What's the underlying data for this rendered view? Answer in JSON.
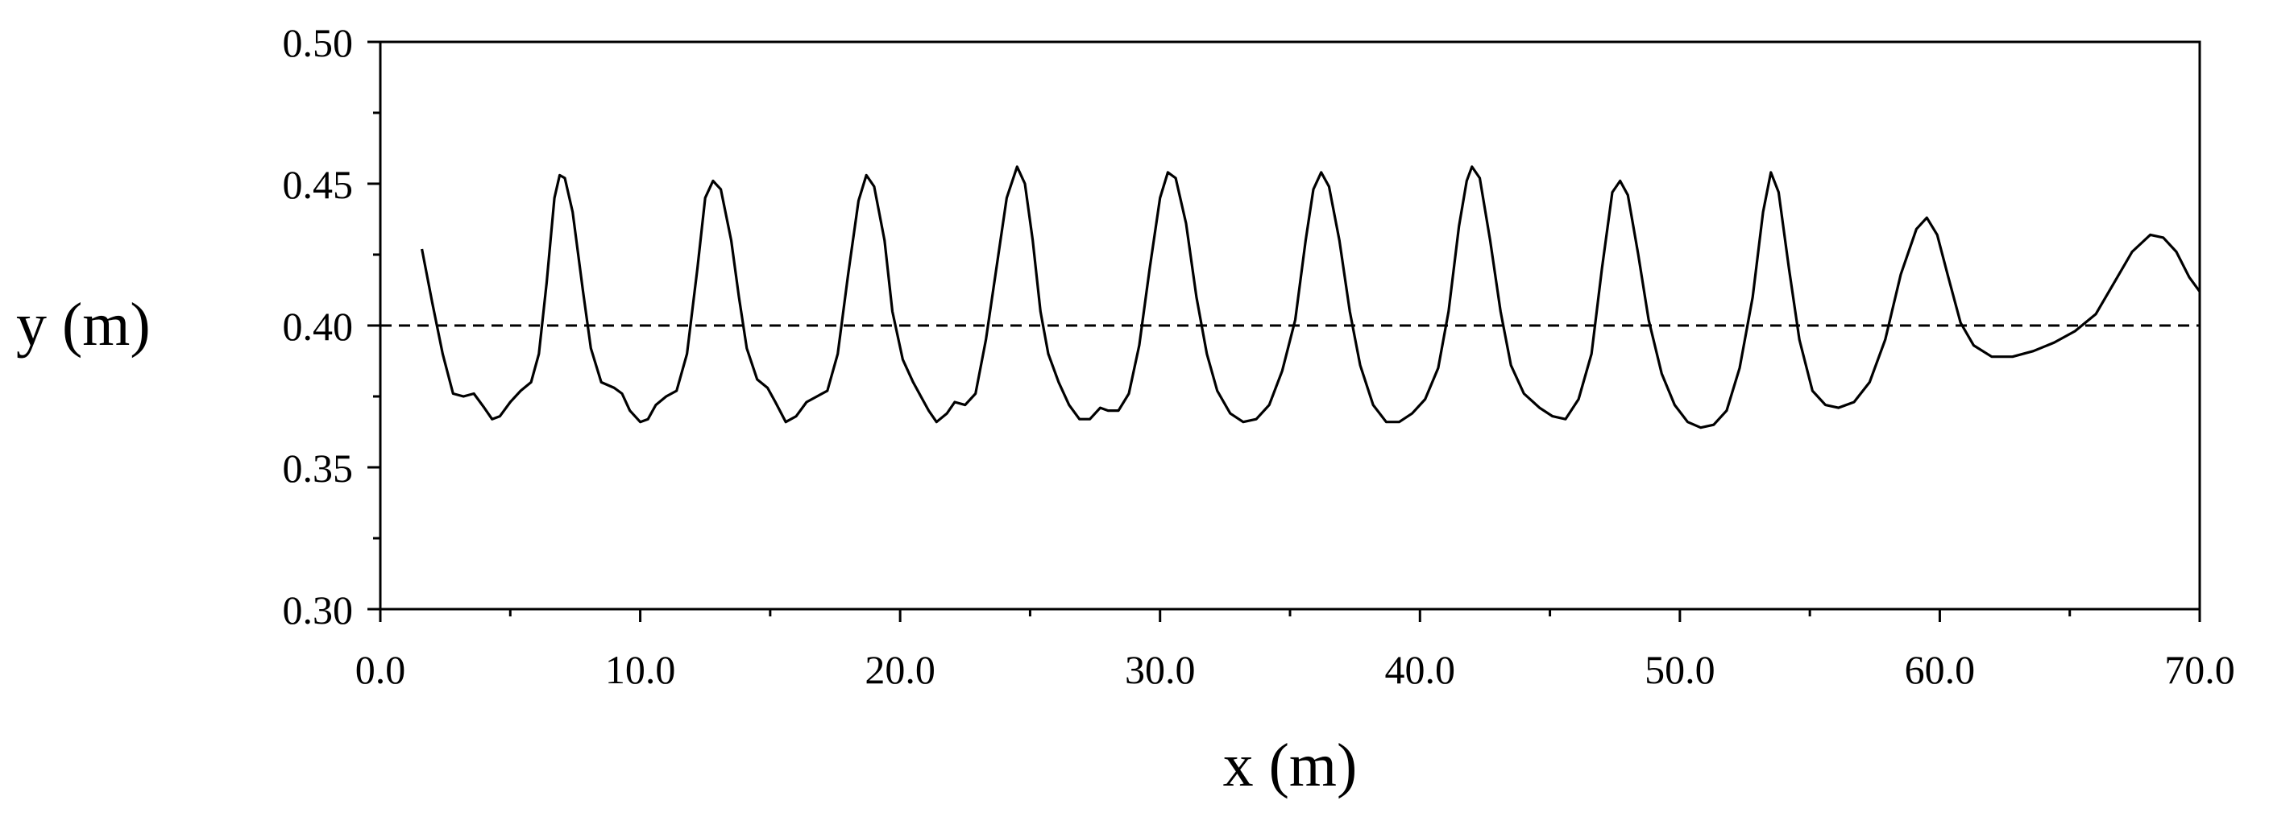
{
  "chart_data": {
    "type": "line",
    "title": "",
    "xlabel": "x (m)",
    "ylabel": "y (m)",
    "xlim": [
      0,
      70
    ],
    "ylim": [
      0.3,
      0.5
    ],
    "x_major_ticks": [
      0,
      10,
      20,
      30,
      40,
      50,
      60,
      70
    ],
    "x_tick_labels": [
      "0.0",
      "10.0",
      "20.0",
      "30.0",
      "40.0",
      "50.0",
      "60.0",
      "70.0"
    ],
    "y_major_ticks": [
      0.3,
      0.35,
      0.4,
      0.45,
      0.5
    ],
    "y_tick_labels": [
      "0.30",
      "0.35",
      "0.40",
      "0.45",
      "0.50"
    ],
    "grid": false,
    "colors": {
      "line": "#000000",
      "reference": "#000000"
    },
    "reference_line": {
      "y": 0.4,
      "style": "dashed"
    },
    "series": [
      {
        "points": [
          [
            1.6,
            0.427
          ],
          [
            2.0,
            0.408
          ],
          [
            2.4,
            0.39
          ],
          [
            2.8,
            0.376
          ],
          [
            3.2,
            0.375
          ],
          [
            3.6,
            0.376
          ],
          [
            4.0,
            0.371
          ],
          [
            4.3,
            0.367
          ],
          [
            4.6,
            0.368
          ],
          [
            5.0,
            0.373
          ],
          [
            5.4,
            0.377
          ],
          [
            5.8,
            0.38
          ],
          [
            6.1,
            0.39
          ],
          [
            6.4,
            0.415
          ],
          [
            6.7,
            0.445
          ],
          [
            6.9,
            0.453
          ],
          [
            7.1,
            0.452
          ],
          [
            7.4,
            0.44
          ],
          [
            7.8,
            0.412
          ],
          [
            8.1,
            0.392
          ],
          [
            8.5,
            0.38
          ],
          [
            9.0,
            0.378
          ],
          [
            9.3,
            0.376
          ],
          [
            9.6,
            0.37
          ],
          [
            10.0,
            0.366
          ],
          [
            10.3,
            0.367
          ],
          [
            10.6,
            0.372
          ],
          [
            11.0,
            0.375
          ],
          [
            11.4,
            0.377
          ],
          [
            11.8,
            0.39
          ],
          [
            12.2,
            0.42
          ],
          [
            12.5,
            0.445
          ],
          [
            12.8,
            0.451
          ],
          [
            13.1,
            0.448
          ],
          [
            13.5,
            0.43
          ],
          [
            13.8,
            0.41
          ],
          [
            14.1,
            0.392
          ],
          [
            14.5,
            0.381
          ],
          [
            14.9,
            0.378
          ],
          [
            15.2,
            0.373
          ],
          [
            15.6,
            0.366
          ],
          [
            16.0,
            0.368
          ],
          [
            16.4,
            0.373
          ],
          [
            16.8,
            0.375
          ],
          [
            17.2,
            0.377
          ],
          [
            17.6,
            0.39
          ],
          [
            18.0,
            0.418
          ],
          [
            18.4,
            0.444
          ],
          [
            18.7,
            0.453
          ],
          [
            19.0,
            0.449
          ],
          [
            19.4,
            0.43
          ],
          [
            19.7,
            0.405
          ],
          [
            20.1,
            0.388
          ],
          [
            20.5,
            0.38
          ],
          [
            20.8,
            0.375
          ],
          [
            21.1,
            0.37
          ],
          [
            21.4,
            0.366
          ],
          [
            21.8,
            0.369
          ],
          [
            22.1,
            0.373
          ],
          [
            22.5,
            0.372
          ],
          [
            22.9,
            0.376
          ],
          [
            23.3,
            0.395
          ],
          [
            23.7,
            0.42
          ],
          [
            24.1,
            0.445
          ],
          [
            24.5,
            0.456
          ],
          [
            24.8,
            0.45
          ],
          [
            25.1,
            0.43
          ],
          [
            25.4,
            0.405
          ],
          [
            25.7,
            0.39
          ],
          [
            26.1,
            0.38
          ],
          [
            26.5,
            0.372
          ],
          [
            26.9,
            0.367
          ],
          [
            27.3,
            0.367
          ],
          [
            27.7,
            0.371
          ],
          [
            28.0,
            0.37
          ],
          [
            28.4,
            0.37
          ],
          [
            28.8,
            0.376
          ],
          [
            29.2,
            0.393
          ],
          [
            29.6,
            0.42
          ],
          [
            30.0,
            0.445
          ],
          [
            30.3,
            0.454
          ],
          [
            30.6,
            0.452
          ],
          [
            31.0,
            0.436
          ],
          [
            31.4,
            0.41
          ],
          [
            31.8,
            0.39
          ],
          [
            32.2,
            0.377
          ],
          [
            32.7,
            0.369
          ],
          [
            33.2,
            0.366
          ],
          [
            33.7,
            0.367
          ],
          [
            34.2,
            0.372
          ],
          [
            34.7,
            0.384
          ],
          [
            35.2,
            0.402
          ],
          [
            35.6,
            0.43
          ],
          [
            35.9,
            0.448
          ],
          [
            36.2,
            0.454
          ],
          [
            36.5,
            0.449
          ],
          [
            36.9,
            0.43
          ],
          [
            37.3,
            0.405
          ],
          [
            37.7,
            0.386
          ],
          [
            38.2,
            0.372
          ],
          [
            38.7,
            0.366
          ],
          [
            39.2,
            0.366
          ],
          [
            39.7,
            0.369
          ],
          [
            40.2,
            0.374
          ],
          [
            40.7,
            0.385
          ],
          [
            41.1,
            0.405
          ],
          [
            41.5,
            0.435
          ],
          [
            41.8,
            0.451
          ],
          [
            42.0,
            0.456
          ],
          [
            42.3,
            0.452
          ],
          [
            42.7,
            0.43
          ],
          [
            43.1,
            0.405
          ],
          [
            43.5,
            0.386
          ],
          [
            44.0,
            0.376
          ],
          [
            44.6,
            0.371
          ],
          [
            45.1,
            0.368
          ],
          [
            45.6,
            0.367
          ],
          [
            46.1,
            0.374
          ],
          [
            46.6,
            0.39
          ],
          [
            47.0,
            0.42
          ],
          [
            47.4,
            0.447
          ],
          [
            47.7,
            0.451
          ],
          [
            48.0,
            0.446
          ],
          [
            48.4,
            0.425
          ],
          [
            48.8,
            0.402
          ],
          [
            49.3,
            0.383
          ],
          [
            49.8,
            0.372
          ],
          [
            50.3,
            0.366
          ],
          [
            50.8,
            0.364
          ],
          [
            51.3,
            0.365
          ],
          [
            51.8,
            0.37
          ],
          [
            52.3,
            0.385
          ],
          [
            52.8,
            0.41
          ],
          [
            53.2,
            0.44
          ],
          [
            53.5,
            0.454
          ],
          [
            53.8,
            0.447
          ],
          [
            54.2,
            0.42
          ],
          [
            54.6,
            0.395
          ],
          [
            55.1,
            0.377
          ],
          [
            55.6,
            0.372
          ],
          [
            56.1,
            0.371
          ],
          [
            56.7,
            0.373
          ],
          [
            57.3,
            0.38
          ],
          [
            57.9,
            0.395
          ],
          [
            58.5,
            0.418
          ],
          [
            59.1,
            0.434
          ],
          [
            59.5,
            0.438
          ],
          [
            59.9,
            0.432
          ],
          [
            60.3,
            0.418
          ],
          [
            60.8,
            0.401
          ],
          [
            61.3,
            0.393
          ],
          [
            62.0,
            0.389
          ],
          [
            62.8,
            0.389
          ],
          [
            63.6,
            0.391
          ],
          [
            64.4,
            0.394
          ],
          [
            65.2,
            0.398
          ],
          [
            66.0,
            0.404
          ],
          [
            66.7,
            0.415
          ],
          [
            67.4,
            0.426
          ],
          [
            68.1,
            0.432
          ],
          [
            68.6,
            0.431
          ],
          [
            69.1,
            0.426
          ],
          [
            69.6,
            0.417
          ],
          [
            70.0,
            0.412
          ]
        ]
      }
    ]
  }
}
